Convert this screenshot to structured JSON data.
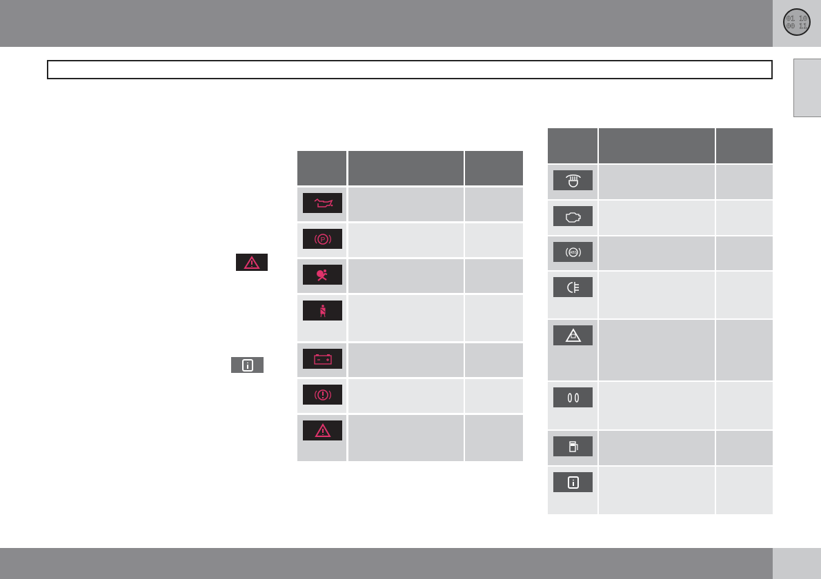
{
  "header": {
    "badge_logo": "01 10 00 11"
  },
  "colors": {
    "warning_red": "#e0336b",
    "info_white": "#ffffff",
    "header_gray": "#6d6e70",
    "row_dark": "#d1d2d4",
    "row_light": "#e6e7e8"
  },
  "inline_icons": [
    "warning-triangle-icon",
    "information-icon"
  ],
  "left_table": {
    "rows": [
      {
        "icon": "oil-pressure-icon"
      },
      {
        "icon": "parking-brake-icon"
      },
      {
        "icon": "airbag-icon"
      },
      {
        "icon": "seatbelt-reminder-icon"
      },
      {
        "icon": "battery-charging-icon"
      },
      {
        "icon": "brake-failure-icon"
      },
      {
        "icon": "warning-triangle-icon"
      }
    ]
  },
  "right_table": {
    "rows": [
      {
        "icon": "towbar-icon"
      },
      {
        "icon": "check-engine-icon"
      },
      {
        "icon": "abs-icon"
      },
      {
        "icon": "rear-fog-light-icon"
      },
      {
        "icon": "stability-control-icon"
      },
      {
        "icon": "glow-plug-icon"
      },
      {
        "icon": "fuel-low-icon"
      },
      {
        "icon": "information-icon"
      }
    ]
  }
}
